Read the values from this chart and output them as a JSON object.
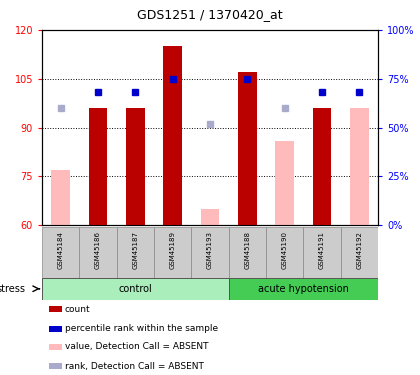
{
  "title": "GDS1251 / 1370420_at",
  "samples": [
    "GSM45184",
    "GSM45186",
    "GSM45187",
    "GSM45189",
    "GSM45193",
    "GSM45188",
    "GSM45190",
    "GSM45191",
    "GSM45192"
  ],
  "n_control": 5,
  "n_acute": 4,
  "ylim_left": [
    60,
    120
  ],
  "ylim_right": [
    0,
    100
  ],
  "yticks_left": [
    60,
    75,
    90,
    105,
    120
  ],
  "yticks_right": [
    0,
    25,
    50,
    75,
    100
  ],
  "ytick_right_labels": [
    "0%",
    "25%",
    "50%",
    "75%",
    "100%"
  ],
  "red_bars": [
    null,
    96,
    96,
    115,
    null,
    107,
    null,
    96,
    null
  ],
  "pink_bars": [
    77,
    null,
    null,
    null,
    65,
    null,
    86,
    null,
    96
  ],
  "blue_pct": [
    null,
    68,
    68,
    75,
    null,
    75,
    null,
    68,
    68
  ],
  "lavender_pct": [
    60,
    null,
    null,
    null,
    52,
    null,
    60,
    null,
    null
  ],
  "bar_width": 0.5,
  "red_color": "#bb0000",
  "pink_color": "#ffbbbb",
  "blue_color": "#0000cc",
  "lavender_color": "#aaaacc",
  "grid_lines": [
    75,
    90,
    105
  ],
  "legend_items": [
    {
      "color": "#bb0000",
      "label": "count"
    },
    {
      "color": "#0000cc",
      "label": "percentile rank within the sample"
    },
    {
      "color": "#ffbbbb",
      "label": "value, Detection Call = ABSENT"
    },
    {
      "color": "#aaaacc",
      "label": "rank, Detection Call = ABSENT"
    }
  ]
}
